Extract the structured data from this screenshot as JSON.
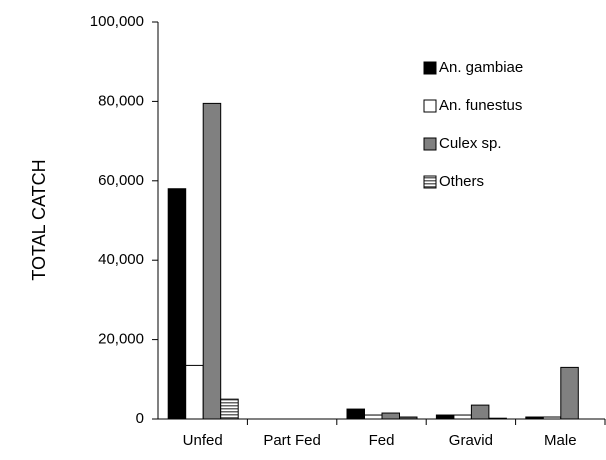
{
  "chart_data": {
    "type": "bar",
    "y_label": "TOTAL CATCH",
    "categories": [
      "Unfed",
      "Part Fed",
      "Fed",
      "Gravid",
      "Male"
    ],
    "series": [
      {
        "name": "An. gambiae",
        "color": "#000000",
        "values": [
          58000,
          0,
          2500,
          1000,
          500
        ]
      },
      {
        "name": "An. funestus",
        "color": "#ffffff",
        "values": [
          13500,
          0,
          1000,
          1000,
          500
        ]
      },
      {
        "name": "Culex sp.",
        "color": "#808080",
        "values": [
          79500,
          0,
          1500,
          3500,
          13000
        ]
      },
      {
        "name": "Others",
        "color": "#666666",
        "hatch": true,
        "values": [
          5000,
          0,
          500,
          200,
          0
        ]
      }
    ],
    "ylim": [
      0,
      100000
    ],
    "yticks": [
      0,
      {
        "value": 20000,
        "label": "20,000"
      },
      {
        "value": 40000,
        "label": "40,000"
      },
      {
        "value": 60000,
        "label": "60,000"
      },
      {
        "value": 80000,
        "label": "80,000"
      },
      {
        "value": 100000,
        "label": "100,000"
      }
    ],
    "legend": "top-right"
  }
}
